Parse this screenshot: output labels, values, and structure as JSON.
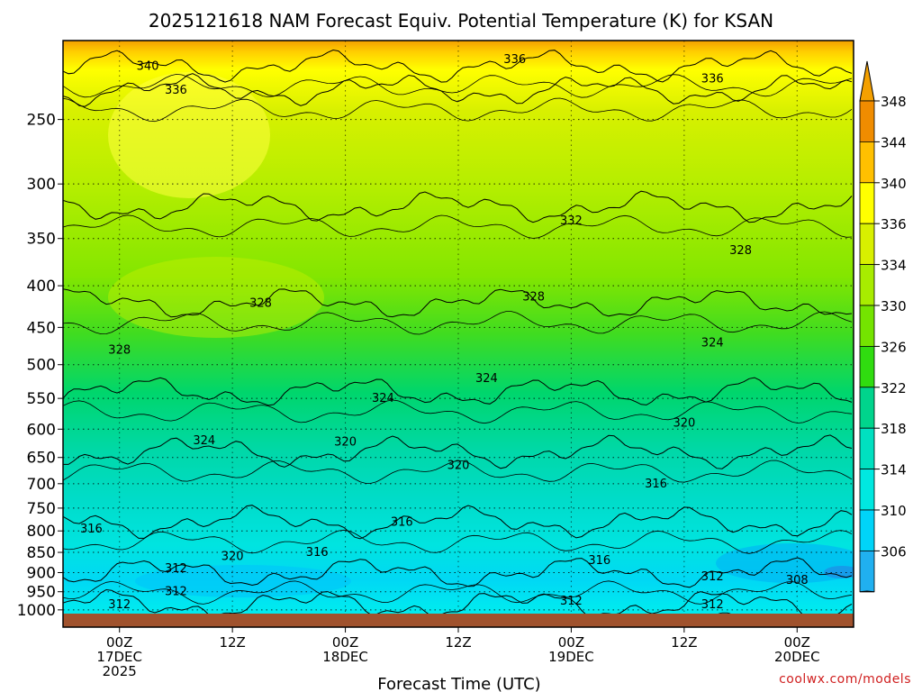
{
  "chart_data": {
    "type": "heatmap",
    "title": "2025121618 NAM Forecast Equiv. Potential Temperature (K) for KSAN",
    "xlabel": "Forecast Time (UTC)",
    "ylabel": "",
    "credit": "coolwx.com/models",
    "y_ticks": [
      250,
      300,
      350,
      400,
      450,
      500,
      550,
      600,
      650,
      700,
      750,
      800,
      850,
      900,
      950,
      1000
    ],
    "y_tick_labels": [
      "250",
      "300",
      "350",
      "400",
      "450",
      "500",
      "550",
      "600",
      "650",
      "700",
      "750",
      "800",
      "850",
      "900",
      "950",
      "1000"
    ],
    "ylim": [
      200,
      1050
    ],
    "y_scale": "log-pressure (inverted)",
    "x_ticks": [
      {
        "time": "2025-12-17 00Z",
        "lines": [
          "00Z",
          "17DEC",
          "2025"
        ]
      },
      {
        "time": "2025-12-17 12Z",
        "lines": [
          "12Z"
        ]
      },
      {
        "time": "2025-12-18 00Z",
        "lines": [
          "00Z",
          "18DEC"
        ]
      },
      {
        "time": "2025-12-18 12Z",
        "lines": [
          "12Z"
        ]
      },
      {
        "time": "2025-12-19 00Z",
        "lines": [
          "00Z",
          "19DEC"
        ]
      },
      {
        "time": "2025-12-19 12Z",
        "lines": [
          "12Z"
        ]
      },
      {
        "time": "2025-12-20 00Z",
        "lines": [
          "00Z",
          "20DEC"
        ]
      }
    ],
    "xlim": [
      "2025-12-16 18Z",
      "2025-12-20 06Z"
    ],
    "grid": true,
    "colorbar": {
      "labels": [
        "348",
        "344",
        "340",
        "336",
        "334",
        "330",
        "326",
        "322",
        "318",
        "314",
        "310",
        "306"
      ],
      "colors": [
        "#f08c00",
        "#ffc000",
        "#ffff00",
        "#d8f000",
        "#a8ec00",
        "#74e400",
        "#30dc10",
        "#00d48c",
        "#00e0c0",
        "#00e8e0",
        "#00d4f8",
        "#20b0f0"
      ]
    },
    "contour_levels": [
      {
        "level": 308,
        "pressure": 900
      },
      {
        "level": 312,
        "pressure": 985
      },
      {
        "level": 316,
        "pressure": 780
      },
      {
        "level": 320,
        "pressure": 640
      },
      {
        "level": 324,
        "pressure": 540
      },
      {
        "level": 328,
        "pressure": 420
      },
      {
        "level": 332,
        "pressure": 320
      },
      {
        "level": 336,
        "pressure": 230
      },
      {
        "level": 340,
        "pressure": 215
      }
    ],
    "contour_labels": [
      {
        "text": "340",
        "time": "2025-12-17 03Z",
        "pressure": 215
      },
      {
        "text": "336",
        "time": "2025-12-17 06Z",
        "pressure": 230
      },
      {
        "text": "336",
        "time": "2025-12-18 18Z",
        "pressure": 211
      },
      {
        "text": "336",
        "time": "2025-12-19 15Z",
        "pressure": 223
      },
      {
        "text": "332",
        "time": "2025-12-19 0Z",
        "pressure": 333
      },
      {
        "text": "328",
        "time": "2025-12-19 18Z",
        "pressure": 362
      },
      {
        "text": "328",
        "time": "2025-12-17 15Z",
        "pressure": 420
      },
      {
        "text": "328",
        "time": "2025-12-18 20Z",
        "pressure": 413
      },
      {
        "text": "328",
        "time": "2025-12-17 00Z",
        "pressure": 480
      },
      {
        "text": "324",
        "time": "2025-12-19 15Z",
        "pressure": 470
      },
      {
        "text": "324",
        "time": "2025-12-18 15Z",
        "pressure": 520
      },
      {
        "text": "324",
        "time": "2025-12-18 04Z",
        "pressure": 550
      },
      {
        "text": "324",
        "time": "2025-12-17 09Z",
        "pressure": 620
      },
      {
        "text": "320",
        "time": "2025-12-19 12Z",
        "pressure": 590
      },
      {
        "text": "320",
        "time": "2025-12-18 00Z",
        "pressure": 622
      },
      {
        "text": "320",
        "time": "2025-12-18 12Z",
        "pressure": 665
      },
      {
        "text": "320",
        "time": "2025-12-17 12Z",
        "pressure": 860
      },
      {
        "text": "316",
        "time": "2025-12-19 09Z",
        "pressure": 700
      },
      {
        "text": "316",
        "time": "2025-12-18 06Z",
        "pressure": 780
      },
      {
        "text": "316",
        "time": "2025-12-17 21Z",
        "pressure": 850
      },
      {
        "text": "316",
        "time": "2025-12-16 21Z",
        "pressure": 795
      },
      {
        "text": "316",
        "time": "2025-12-19 03Z",
        "pressure": 870
      },
      {
        "text": "312",
        "time": "2025-12-17 06Z",
        "pressure": 890
      },
      {
        "text": "312",
        "time": "2025-12-17 06Z",
        "pressure": 950
      },
      {
        "text": "312",
        "time": "2025-12-17 00Z",
        "pressure": 985
      },
      {
        "text": "312",
        "time": "2025-12-19 00Z",
        "pressure": 975
      },
      {
        "text": "312",
        "time": "2025-12-19 15Z",
        "pressure": 985
      },
      {
        "text": "312",
        "time": "2025-12-19 15Z",
        "pressure": 910
      },
      {
        "text": "308",
        "time": "2025-12-20 00Z",
        "pressure": 920
      }
    ],
    "surface_color": "#a0522d"
  }
}
